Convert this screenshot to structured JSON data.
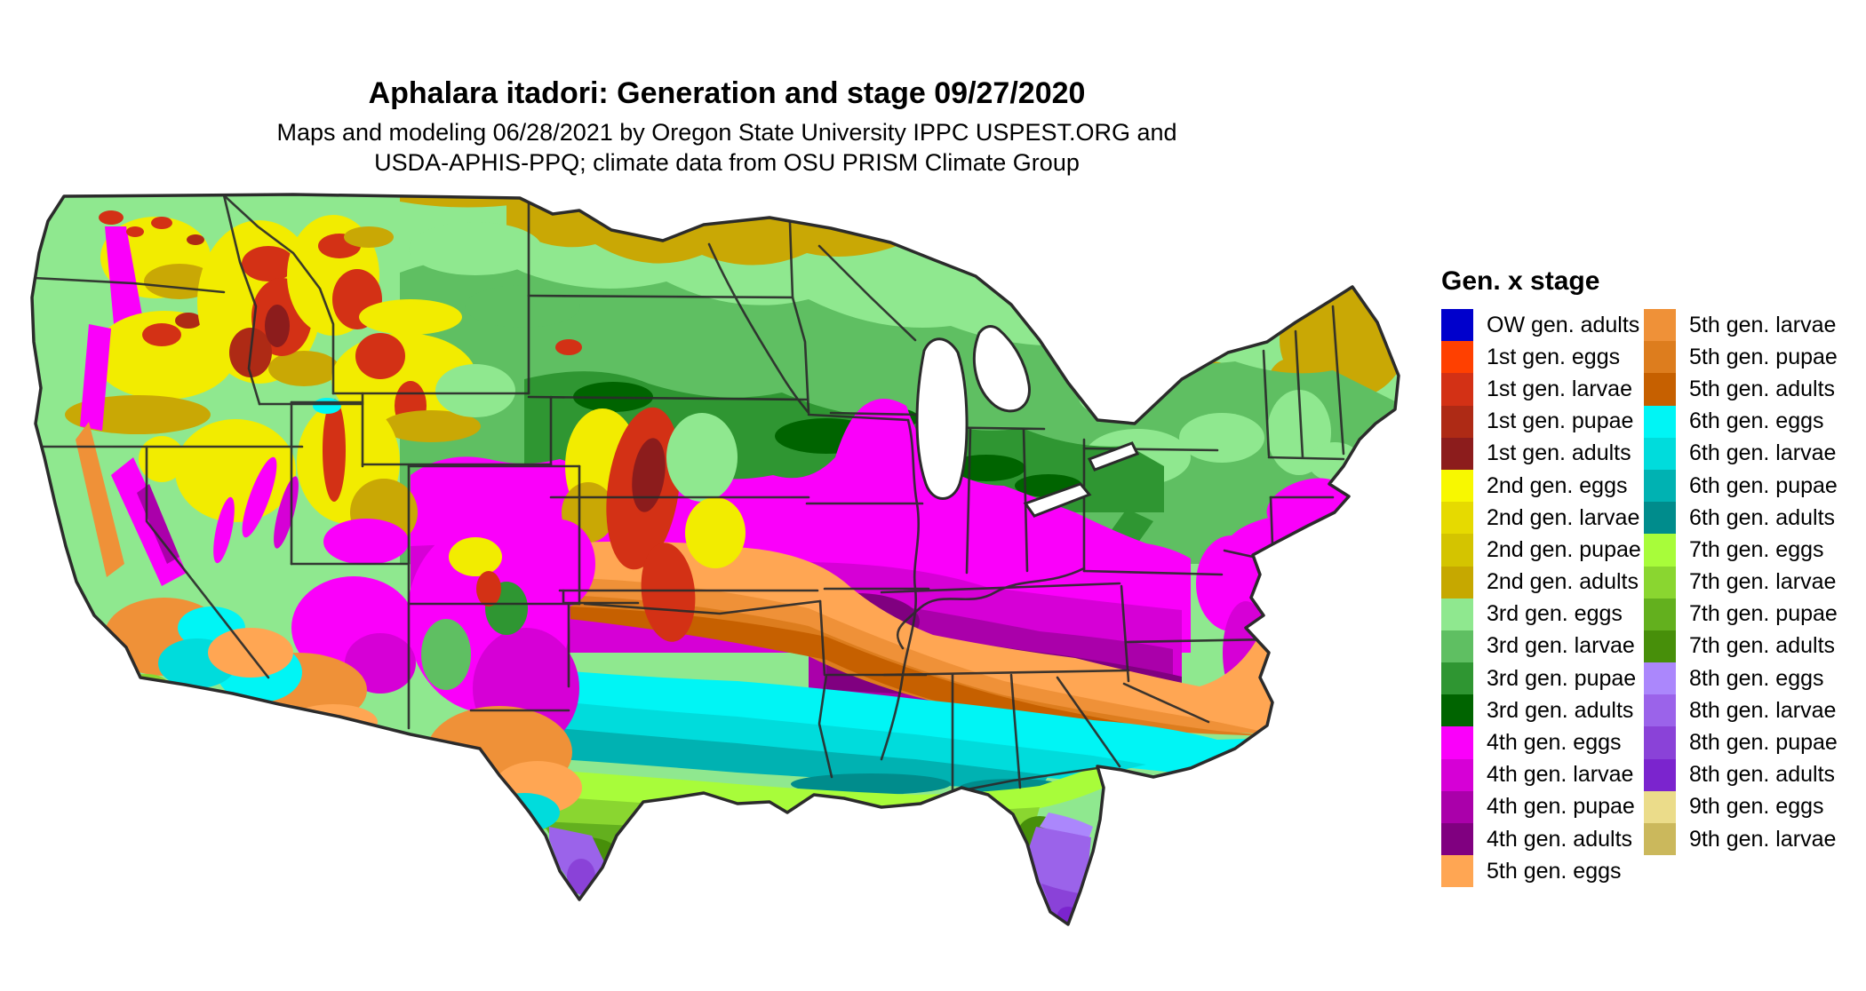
{
  "header": {
    "title": "Aphalara itadori: Generation and stage 09/27/2020",
    "subtitle_line1": "Maps and modeling 06/28/2021 by Oregon State University IPPC USPEST.ORG and",
    "subtitle_line2": "USDA-APHIS-PPQ; climate data from OSU PRISM Climate Group"
  },
  "legend": {
    "title": "Gen. x stage",
    "column1": [
      {
        "label": "OW gen. adults",
        "color": "#0000CC"
      },
      {
        "label": "1st gen. eggs",
        "color": "#FF4000"
      },
      {
        "label": "1st gen. larvae",
        "color": "#D33115"
      },
      {
        "label": "1st gen. pupae",
        "color": "#AE2A15"
      },
      {
        "label": "1st gen. adults",
        "color": "#8C1C1C"
      },
      {
        "label": "2nd gen. eggs",
        "color": "#F8F800"
      },
      {
        "label": "2nd gen. larvae",
        "color": "#E6DA00"
      },
      {
        "label": "2nd gen. pupae",
        "color": "#D4C400"
      },
      {
        "label": "2nd gen. adults",
        "color": "#C6A800"
      },
      {
        "label": "3rd gen. eggs",
        "color": "#8FE88F"
      },
      {
        "label": "3rd gen. larvae",
        "color": "#5FBF62"
      },
      {
        "label": "3rd gen. pupae",
        "color": "#2F9632"
      },
      {
        "label": "3rd gen. adults",
        "color": "#006400"
      },
      {
        "label": "4th gen. eggs",
        "color": "#FA00FA"
      },
      {
        "label": "4th gen. larvae",
        "color": "#D600D6"
      },
      {
        "label": "4th gen. pupae",
        "color": "#AA00AA"
      },
      {
        "label": "4th gen. adults",
        "color": "#800080"
      },
      {
        "label": "5th gen. eggs",
        "color": "#FFA653"
      }
    ],
    "column2": [
      {
        "label": "5th gen. larvae",
        "color": "#EF9138"
      },
      {
        "label": "5th gen. pupae",
        "color": "#DD7D1E"
      },
      {
        "label": "5th gen. adults",
        "color": "#C66000"
      },
      {
        "label": "6th gen. eggs",
        "color": "#00F5F5"
      },
      {
        "label": "6th gen. larvae",
        "color": "#00DCDC"
      },
      {
        "label": "6th gen. pupae",
        "color": "#00B2B2"
      },
      {
        "label": "6th gen. adults",
        "color": "#008C8C"
      },
      {
        "label": "7th gen. eggs",
        "color": "#A8FC3A"
      },
      {
        "label": "7th gen. larvae",
        "color": "#8AD630"
      },
      {
        "label": "7th gen. pupae",
        "color": "#63B01E"
      },
      {
        "label": "7th gen. adults",
        "color": "#478F0A"
      },
      {
        "label": "8th gen. eggs",
        "color": "#AB87FC"
      },
      {
        "label": "8th gen. larvae",
        "color": "#9B63EA"
      },
      {
        "label": "8th gen. pupae",
        "color": "#8A42D8"
      },
      {
        "label": "8th gen. adults",
        "color": "#7B24CE"
      },
      {
        "label": "9th gen. eggs",
        "color": "#EBDC8A"
      },
      {
        "label": "9th gen. larvae",
        "color": "#CBB85C"
      }
    ]
  }
}
